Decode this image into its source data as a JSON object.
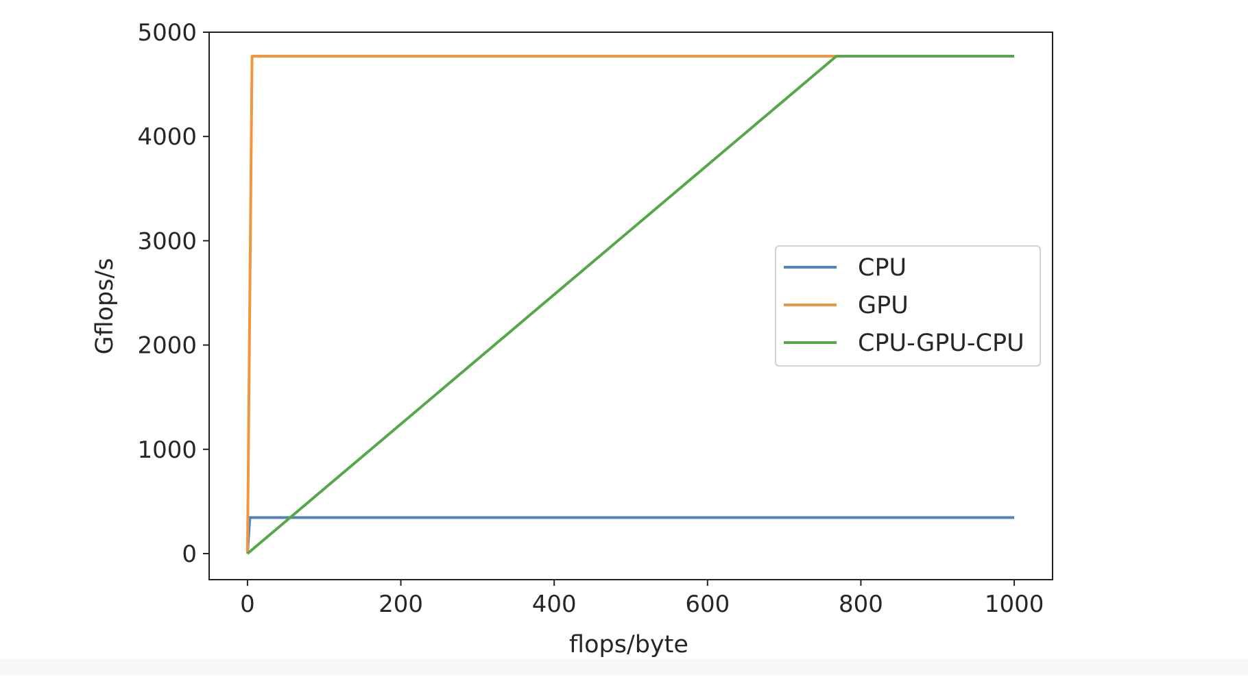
{
  "chart_data": {
    "type": "line",
    "title": "",
    "xlabel": "flops/byte",
    "ylabel": "Gflops/s",
    "xlim": [
      -50,
      1050
    ],
    "ylim": [
      -250,
      5000
    ],
    "x_ticks": [
      0,
      200,
      400,
      600,
      800,
      1000
    ],
    "y_ticks": [
      0,
      1000,
      2000,
      3000,
      4000,
      5000
    ],
    "grid": false,
    "legend_position": "center-right",
    "series": [
      {
        "name": "CPU",
        "color": "#4c84c0",
        "points": [
          [
            0,
            0
          ],
          [
            3,
            345
          ],
          [
            1000,
            345
          ]
        ]
      },
      {
        "name": "GPU",
        "color": "#f3953c",
        "points": [
          [
            0,
            0
          ],
          [
            6,
            4770
          ],
          [
            1000,
            4770
          ]
        ]
      },
      {
        "name": "CPU-GPU-CPU",
        "color": "#55a84a",
        "points": [
          [
            0,
            0
          ],
          [
            768,
            4770
          ],
          [
            1000,
            4770
          ]
        ]
      }
    ]
  }
}
